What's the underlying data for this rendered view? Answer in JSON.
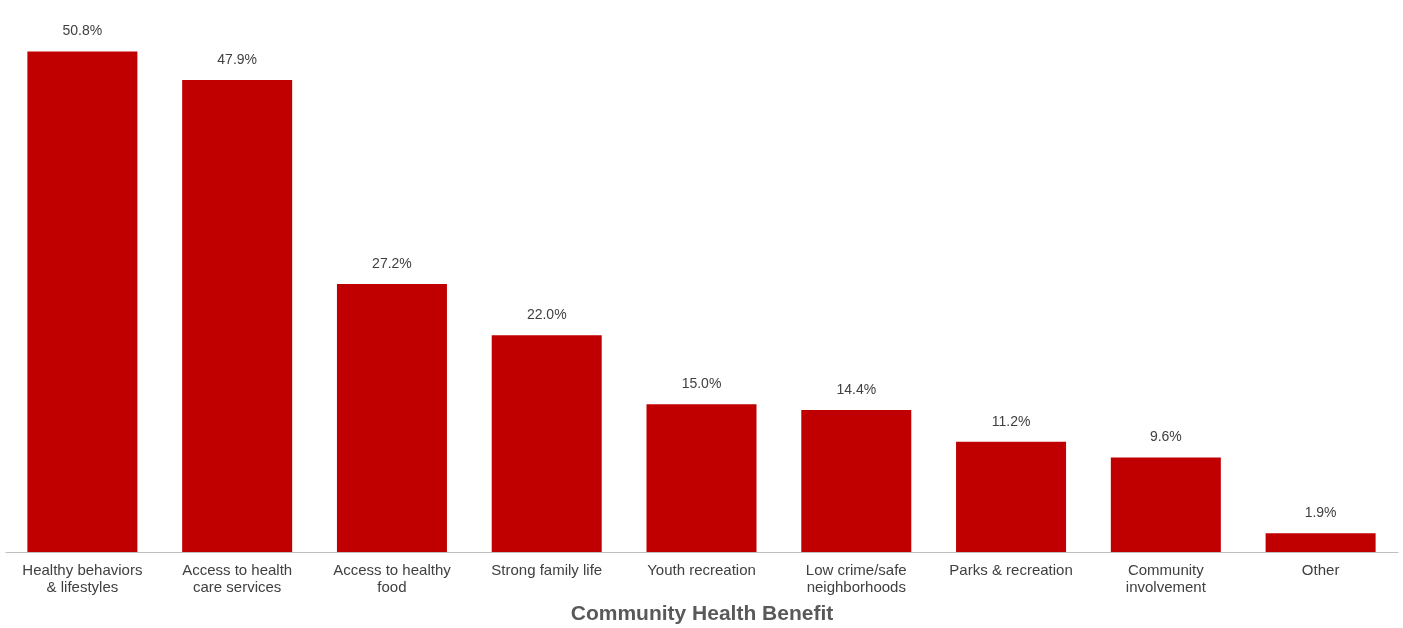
{
  "chart_data": {
    "type": "bar",
    "xlabel": "Community Health Benefit",
    "categories": [
      "Healthy behaviors & lifestyles",
      "Access to health care services",
      "Access to healthy food",
      "Strong family life",
      "Youth recreation",
      "Low crime/safe neighborhoods",
      "Parks & recreation",
      "Community involvement",
      "Other"
    ],
    "values": [
      50.8,
      47.9,
      27.2,
      22.0,
      15.0,
      14.4,
      11.2,
      9.6,
      1.9
    ],
    "value_labels": [
      "50.8%",
      "47.9%",
      "27.2%",
      "22.0%",
      "15.0%",
      "14.4%",
      "11.2%",
      "9.6%",
      "1.9%"
    ],
    "color": "#c00000",
    "grid": false
  }
}
